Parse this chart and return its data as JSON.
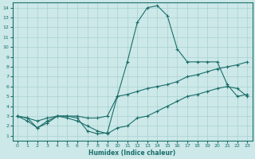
{
  "xlabel": "Humidex (Indice chaleur)",
  "background_color": "#cce8e8",
  "grid_color": "#aad0d0",
  "line_color": "#1a6e6a",
  "xlim": [
    -0.5,
    23.5
  ],
  "ylim": [
    0.5,
    14.5
  ],
  "xticks": [
    0,
    1,
    2,
    3,
    4,
    5,
    6,
    7,
    8,
    9,
    10,
    11,
    12,
    13,
    14,
    15,
    16,
    17,
    18,
    19,
    20,
    21,
    22,
    23
  ],
  "yticks": [
    1,
    2,
    3,
    4,
    5,
    6,
    7,
    8,
    9,
    10,
    11,
    12,
    13,
    14
  ],
  "curve_peak_x": [
    0,
    1,
    2,
    3,
    4,
    5,
    6,
    7,
    8,
    9,
    10,
    11,
    12,
    13,
    14,
    15,
    16,
    17,
    18,
    19,
    20,
    21,
    22,
    23
  ],
  "curve_peak_y": [
    3.0,
    2.8,
    1.8,
    2.5,
    3.0,
    3.0,
    2.8,
    1.5,
    1.2,
    1.3,
    5.0,
    8.5,
    12.5,
    14.0,
    14.2,
    13.2,
    9.8,
    8.5,
    8.5,
    8.5,
    8.5,
    6.2,
    5.0,
    5.2
  ],
  "curve_diag_x": [
    0,
    1,
    2,
    3,
    4,
    5,
    6,
    7,
    8,
    9,
    10,
    11,
    12,
    13,
    14,
    15,
    16,
    17,
    18,
    19,
    20,
    21,
    22,
    23
  ],
  "curve_diag_y": [
    3.0,
    2.8,
    2.5,
    2.8,
    3.0,
    3.0,
    3.0,
    2.8,
    2.8,
    3.0,
    5.0,
    5.2,
    5.5,
    5.8,
    6.0,
    6.2,
    6.5,
    7.0,
    7.2,
    7.5,
    7.8,
    8.0,
    8.2,
    8.5
  ],
  "curve_dip_x": [
    0,
    1,
    2,
    3,
    4,
    5,
    6,
    7,
    8,
    9,
    10,
    11,
    12,
    13,
    14,
    15,
    16,
    17,
    18,
    19,
    20,
    21,
    22,
    23
  ],
  "curve_dip_y": [
    3.0,
    2.5,
    1.8,
    2.3,
    3.0,
    2.8,
    2.5,
    2.0,
    1.5,
    1.2,
    1.8,
    2.0,
    2.8,
    3.0,
    3.5,
    4.0,
    4.5,
    5.0,
    5.2,
    5.5,
    5.8,
    6.0,
    5.8,
    5.0
  ]
}
